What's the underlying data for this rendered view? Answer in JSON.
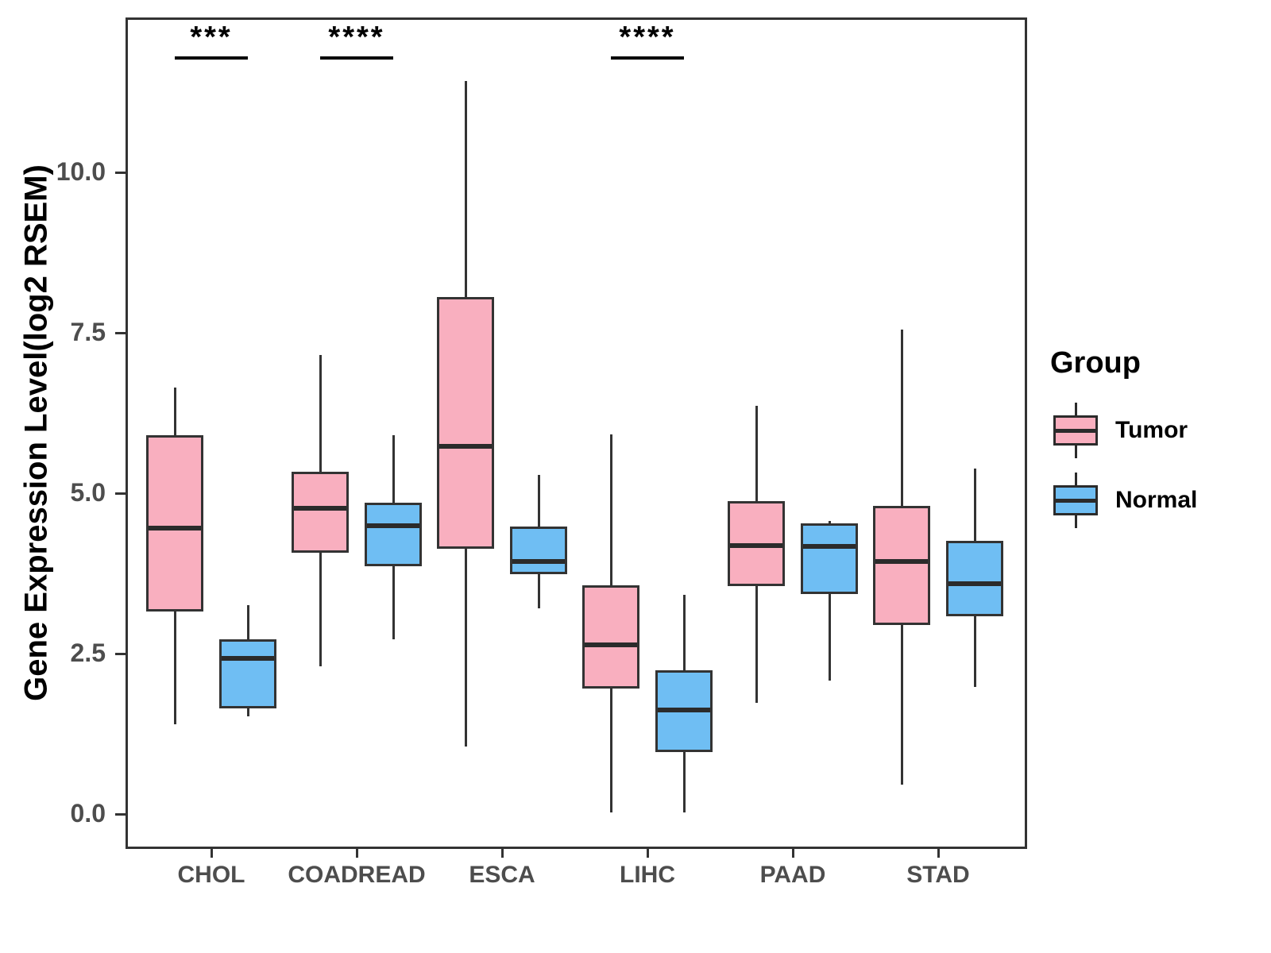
{
  "figure": {
    "background": "#FFFFFF",
    "y_axis": {
      "label": "Gene Expression Level(log2 RSEM)",
      "tick_labels": [
        "0.0",
        "2.5",
        "5.0",
        "7.5",
        "10.0"
      ],
      "tick_values": [
        0.0,
        2.5,
        5.0,
        7.5,
        10.0
      ]
    },
    "x_axis": {
      "categories": [
        "CHOL",
        "COADREAD",
        "ESCA",
        "LIHC",
        "PAAD",
        "STAD"
      ]
    },
    "legend": {
      "title": "Group",
      "entries": [
        {
          "label": "Tumor",
          "color": "#F9AFBF"
        },
        {
          "label": "Normal",
          "color": "#6FBEF3"
        }
      ]
    }
  },
  "chart_data": {
    "type": "boxplot",
    "title": "",
    "xlabel": "",
    "ylabel": "Gene Expression Level(log2 RSEM)",
    "ylim": [
      -0.55,
      12.4
    ],
    "yticks": [
      0.0,
      2.5,
      5.0,
      7.5,
      10.0
    ],
    "grid": false,
    "legend_position": "right",
    "categories": [
      "CHOL",
      "COADREAD",
      "ESCA",
      "LIHC",
      "PAAD",
      "STAD"
    ],
    "series": [
      {
        "name": "Tumor",
        "fill": "#F9AFBF",
        "boxes": [
          {
            "category": "CHOL",
            "whisker_low": 1.4,
            "q1": 3.15,
            "median": 4.45,
            "q3": 5.9,
            "whisker_high": 6.65
          },
          {
            "category": "COADREAD",
            "whisker_low": 2.3,
            "q1": 4.07,
            "median": 4.76,
            "q3": 5.33,
            "whisker_high": 7.15
          },
          {
            "category": "ESCA",
            "whisker_low": 1.05,
            "q1": 4.13,
            "median": 5.73,
            "q3": 8.06,
            "whisker_high": 11.42
          },
          {
            "category": "LIHC",
            "whisker_low": 0.02,
            "q1": 1.96,
            "median": 2.64,
            "q3": 3.56,
            "whisker_high": 5.92
          },
          {
            "category": "PAAD",
            "whisker_low": 1.73,
            "q1": 3.55,
            "median": 4.18,
            "q3": 4.88,
            "whisker_high": 6.36
          },
          {
            "category": "STAD",
            "whisker_low": 0.46,
            "q1": 2.95,
            "median": 3.94,
            "q3": 4.8,
            "whisker_high": 7.55
          }
        ]
      },
      {
        "name": "Normal",
        "fill": "#6FBEF3",
        "boxes": [
          {
            "category": "CHOL",
            "whisker_low": 1.52,
            "q1": 1.65,
            "median": 2.42,
            "q3": 2.72,
            "whisker_high": 3.25
          },
          {
            "category": "COADREAD",
            "whisker_low": 2.72,
            "q1": 3.86,
            "median": 4.49,
            "q3": 4.85,
            "whisker_high": 5.9
          },
          {
            "category": "ESCA",
            "whisker_low": 3.21,
            "q1": 3.74,
            "median": 3.94,
            "q3": 4.48,
            "whisker_high": 5.28
          },
          {
            "category": "LIHC",
            "whisker_low": 0.02,
            "q1": 0.97,
            "median": 1.62,
            "q3": 2.24,
            "whisker_high": 3.41
          },
          {
            "category": "PAAD",
            "whisker_low": 2.08,
            "q1": 3.43,
            "median": 4.17,
            "q3": 4.53,
            "whisker_high": 4.57
          },
          {
            "category": "STAD",
            "whisker_low": 1.98,
            "q1": 3.08,
            "median": 3.59,
            "q3": 4.26,
            "whisker_high": 5.38
          }
        ]
      }
    ],
    "significance": [
      {
        "category": "CHOL",
        "label": "***"
      },
      {
        "category": "COADREAD",
        "label": "****"
      },
      {
        "category": "LIHC",
        "label": "****"
      }
    ],
    "colors": {
      "box_stroke": "#333333",
      "median": "#2B2B2B",
      "whisker": "#333333",
      "axis_text": "#4D4D4D",
      "panel_border": "#333333",
      "annotation": "#000000"
    }
  }
}
